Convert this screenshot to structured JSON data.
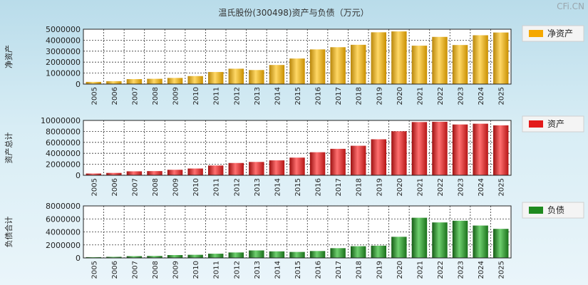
{
  "title": "温氏股份(300498)资产与负债（万元）",
  "watermark": "CFi.CN",
  "chart_data": [
    {
      "type": "bar",
      "ylabel": "净资产",
      "legend": "净资产",
      "color": "#f5a800",
      "ylim": [
        0,
        5000000
      ],
      "yticks": [
        0,
        1000000,
        2000000,
        3000000,
        4000000,
        5000000
      ],
      "yticklabels": [
        "0",
        "1000000",
        "2000000",
        "3000000",
        "4000000",
        "5000000"
      ],
      "categories": [
        "2005",
        "2006",
        "2007",
        "2008",
        "2009",
        "2010",
        "2011",
        "2012",
        "2013",
        "2014",
        "2015",
        "2016",
        "2017",
        "2018",
        "2019",
        "2020",
        "2021",
        "2022",
        "2023",
        "2024",
        "2025"
      ],
      "values": [
        200000,
        260000,
        450000,
        480000,
        560000,
        730000,
        1100000,
        1400000,
        1280000,
        1740000,
        2330000,
        3160000,
        3360000,
        3580000,
        4720000,
        4800000,
        3500000,
        4300000,
        3560000,
        4450000,
        4700000
      ]
    },
    {
      "type": "bar",
      "ylabel": "资产总计",
      "legend": "资产",
      "color": "#e31a1a",
      "ylim": [
        0,
        10000000
      ],
      "yticks": [
        0,
        2000000,
        4000000,
        6000000,
        8000000,
        10000000
      ],
      "yticklabels": [
        "0",
        "2000000",
        "4000000",
        "6000000",
        "8000000",
        "10000000"
      ],
      "categories": [
        "2005",
        "2006",
        "2007",
        "2008",
        "2009",
        "2010",
        "2011",
        "2012",
        "2013",
        "2014",
        "2015",
        "2016",
        "2017",
        "2018",
        "2019",
        "2020",
        "2021",
        "2022",
        "2023",
        "2024",
        "2025"
      ],
      "values": [
        320000,
        430000,
        720000,
        760000,
        1000000,
        1230000,
        1780000,
        2240000,
        2430000,
        2720000,
        3220000,
        4200000,
        4820000,
        5380000,
        6560000,
        8020000,
        9700000,
        9750000,
        9260000,
        9400000,
        9100000
      ]
    },
    {
      "type": "bar",
      "ylabel": "负债合计",
      "legend": "负债",
      "color": "#1f8a1f",
      "ylim": [
        0,
        8000000
      ],
      "yticks": [
        0,
        2000000,
        4000000,
        6000000,
        8000000
      ],
      "yticklabels": [
        "0",
        "2000000",
        "4000000",
        "6000000",
        "8000000"
      ],
      "categories": [
        "2005",
        "2006",
        "2007",
        "2008",
        "2009",
        "2010",
        "2011",
        "2012",
        "2013",
        "2014",
        "2015",
        "2016",
        "2017",
        "2018",
        "2019",
        "2020",
        "2021",
        "2022",
        "2023",
        "2024",
        "2025"
      ],
      "values": [
        120000,
        170000,
        270000,
        300000,
        440000,
        480000,
        650000,
        840000,
        1150000,
        1010000,
        920000,
        1060000,
        1500000,
        1800000,
        1880000,
        3250000,
        6180000,
        5460000,
        5720000,
        4980000,
        4470000
      ]
    }
  ]
}
